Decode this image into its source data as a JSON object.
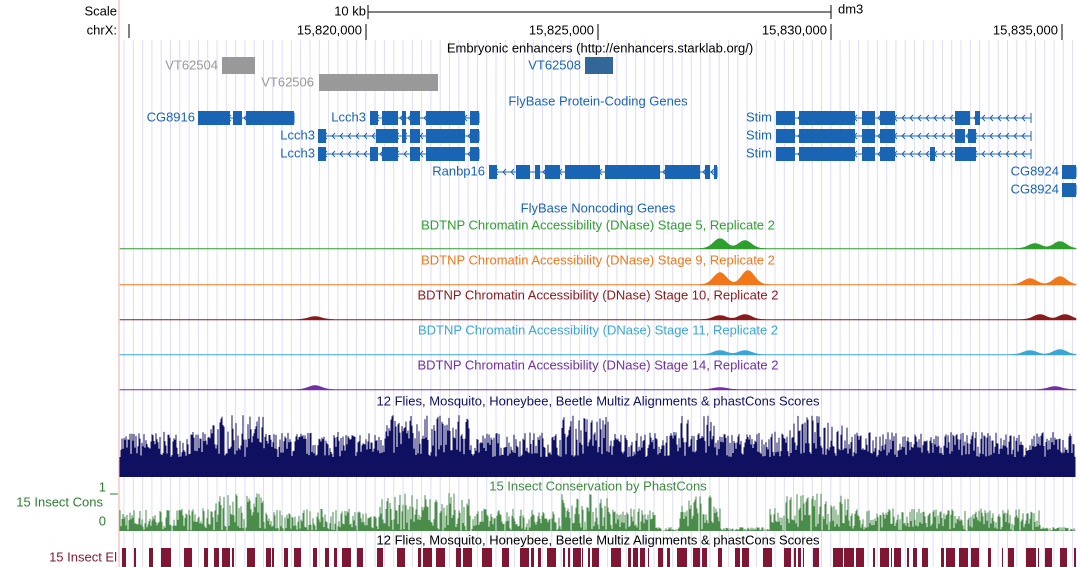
{
  "scale": {
    "label": "Scale",
    "size": "10 kb",
    "assembly": "dm3"
  },
  "position": {
    "label": "chrX:",
    "ticks": [
      "15,820,000",
      "15,825,000",
      "15,830,000",
      "15,835,000"
    ]
  },
  "tracks": {
    "enhancers": {
      "title": "Embryonic enhancers (http://enhancers.starklab.org/)",
      "items": [
        "VT62504",
        "VT62506",
        "VT62508"
      ]
    },
    "protein_coding": {
      "title": "FlyBase Protein-Coding Genes",
      "genes": [
        "CG8916",
        "Lcch3",
        "Lcch3",
        "Lcch3",
        "Ranbp16",
        "Stim",
        "Stim",
        "Stim",
        "CG8924",
        "CG8924"
      ]
    },
    "noncoding": {
      "title": "FlyBase Noncoding Genes"
    },
    "dnase": [
      "BDTNP Chromatin Accessibility (DNase) Stage 5, Replicate 2",
      "BDTNP Chromatin Accessibility (DNase) Stage 9, Replicate 2",
      "BDTNP Chromatin Accessibility (DNase) Stage 10, Replicate 2",
      "BDTNP Chromatin Accessibility (DNase) Stage 11, Replicate 2",
      "BDTNP Chromatin Accessibility (DNase) Stage 14, Replicate 2"
    ],
    "multiz": {
      "title": "12 Flies, Mosquito, Honeybee, Beetle Multiz Alignments & phastCons Scores"
    },
    "phastcons": {
      "title": "15 Insect Conservation by PhastCons",
      "label": "15 Insect Cons",
      "max": 1,
      "min": 0
    },
    "multiz_2": {
      "title": "12 Flies, Mosquito, Honeybee, Beetle Multiz Alignments & phastCons Scores"
    },
    "elements": {
      "label": "15 Insect El"
    }
  }
}
